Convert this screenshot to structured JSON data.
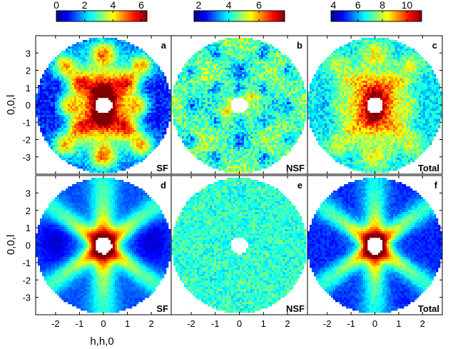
{
  "chart_data": {
    "type": "heatmap",
    "grid": "off",
    "x_label": "h,h,0",
    "y_label": "0,0,l",
    "x_ticks": [
      -2,
      -1,
      0,
      1,
      2
    ],
    "y_ticks": [
      3,
      2,
      1,
      0,
      -1,
      -2,
      -3
    ],
    "x_range": [
      -2.83,
      2.83
    ],
    "y_range": [
      -4,
      4
    ],
    "colormap": "jet",
    "colors": {
      "low": "#00008f",
      "mid": "#80ff80",
      "high": "#800000"
    },
    "colorbars": [
      {
        "column": 0,
        "ticks": [
          0,
          2,
          4,
          6
        ],
        "range": [
          0,
          6.4
        ]
      },
      {
        "column": 1,
        "ticks": [
          2,
          4,
          6
        ],
        "range": [
          1.7,
          7.7
        ]
      },
      {
        "column": 2,
        "ticks": [
          4,
          6,
          8,
          10
        ],
        "range": [
          3.8,
          11.2
        ]
      }
    ],
    "panels": [
      {
        "letter": "a",
        "channel": "SF",
        "kind": "measured"
      },
      {
        "letter": "b",
        "channel": "NSF",
        "kind": "measured"
      },
      {
        "letter": "c",
        "channel": "Total",
        "kind": "measured"
      },
      {
        "letter": "d",
        "channel": "SF",
        "kind": "calculated"
      },
      {
        "letter": "e",
        "channel": "NSF",
        "kind": "calculated"
      },
      {
        "letter": "f",
        "channel": "Total",
        "kind": "calculated"
      }
    ]
  }
}
